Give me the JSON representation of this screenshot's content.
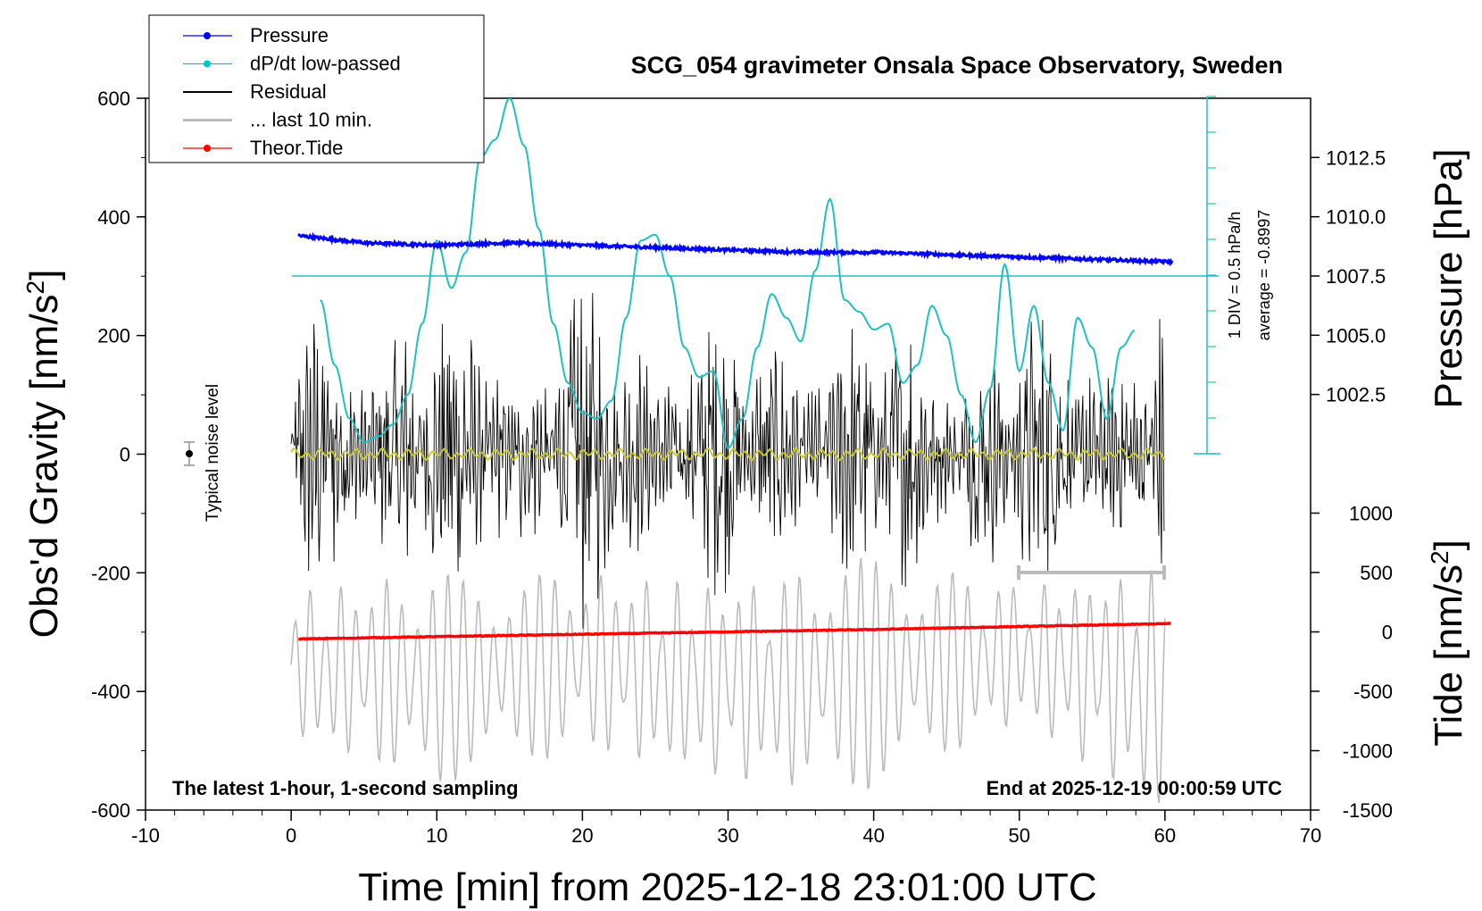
{
  "chart_data": {
    "type": "line",
    "title": "SCG_054 gravimeter Onsala Space Observatory, Sweden",
    "subtitle_left": "The latest 1-hour, 1-second sampling",
    "subtitle_right": "End at 2025-12-19 00:00:59 UTC",
    "xlabel": "Time [min] from 2025-12-18 23:01:00 UTC",
    "ylabel_left": "Obs'd Gravity [nm/s",
    "ylabel_left_sup": "2",
    "ylabel_left_end": "]",
    "ylabel_right_pressure": "Pressure [hPa]",
    "ylabel_right_tide": "Tide [nm/s",
    "ylabel_right_tide_sup": "2",
    "ylabel_right_tide_end": "]",
    "xlim": [
      -10,
      70
    ],
    "ylim_left": [
      -600,
      600
    ],
    "pressure_ylim": [
      1000.0,
      1015.0
    ],
    "tide_ylim": [
      -1500,
      1500
    ],
    "x_ticks": [
      "-10",
      "0",
      "10",
      "20",
      "30",
      "40",
      "50",
      "60",
      "70"
    ],
    "y_ticks_left": [
      "600",
      "400",
      "200",
      "0",
      "-200",
      "-400",
      "-600"
    ],
    "pressure_ticks": [
      "1012.5",
      "1010.0",
      "1007.5",
      "1005.0",
      "1002.5"
    ],
    "tide_ticks": [
      "1000",
      "500",
      "0",
      "-500",
      "-1000",
      "-1500"
    ],
    "legend_position": "top-left",
    "legend": [
      {
        "label": "Pressure",
        "color": "#0000ff",
        "marker": true
      },
      {
        "label": "dP/dt low-passed",
        "color": "#00c8c8",
        "marker": true
      },
      {
        "label": "Residual",
        "color": "#000000",
        "marker": false
      },
      {
        "label": "... last 10 min.",
        "color": "#bbbbbb",
        "marker": false
      },
      {
        "label": "Theor.Tide",
        "color": "#ff0000",
        "marker": true
      }
    ],
    "annotations": {
      "noise_label": "Typical noise level",
      "div_label": "1 DIV = 0.5 hPa/h",
      "average_label": "average = -0.8997"
    },
    "colors": {
      "pressure": "#0000ff",
      "dpdt": "#20c0c0",
      "residual": "#000000",
      "last10": "#bbbbbb",
      "tide": "#ff0000",
      "smooth_residual": "#c8c832"
    },
    "series": [
      {
        "name": "Pressure",
        "axis": "pressure_hPa",
        "x": [
          0.5,
          5,
          10,
          15,
          20,
          25,
          30,
          35,
          40,
          45,
          50,
          55,
          60.5
        ],
        "values": [
          1009.2,
          1008.9,
          1008.8,
          1008.9,
          1008.8,
          1008.7,
          1008.6,
          1008.5,
          1008.5,
          1008.4,
          1008.3,
          1008.2,
          1008.1
        ]
      },
      {
        "name": "dP/dt low-passed",
        "axis": "gravity_nm_s2",
        "x": [
          2,
          3,
          4,
          5,
          6,
          7,
          8,
          9,
          10,
          11,
          12,
          13,
          14,
          15,
          16,
          17,
          18,
          19,
          20,
          21,
          22,
          23,
          24,
          25,
          26,
          27,
          28,
          29,
          30,
          31,
          32,
          33,
          34,
          35,
          36,
          37,
          38,
          39,
          40,
          41,
          42,
          43,
          44,
          45,
          46,
          47,
          48,
          49,
          50,
          51,
          52,
          53,
          54,
          55,
          56,
          57,
          58
        ],
        "values": [
          260,
          150,
          60,
          20,
          30,
          50,
          100,
          220,
          360,
          280,
          340,
          500,
          530,
          600,
          520,
          380,
          220,
          120,
          70,
          60,
          90,
          230,
          360,
          370,
          300,
          180,
          130,
          140,
          10,
          60,
          180,
          270,
          230,
          190,
          310,
          430,
          260,
          240,
          210,
          220,
          120,
          150,
          250,
          200,
          100,
          20,
          110,
          320,
          140,
          250,
          120,
          40,
          230,
          180,
          60,
          180,
          210
        ]
      },
      {
        "name": "Residual",
        "axis": "gravity_nm_s2",
        "x": [
          0,
          10,
          20,
          30,
          40,
          50,
          60
        ],
        "envelope_min": [
          -230,
          -250,
          -200,
          -190,
          -190,
          -200,
          -260
        ],
        "envelope_max": [
          240,
          250,
          260,
          220,
          230,
          220,
          230
        ]
      },
      {
        "name": "... last 10 min.",
        "axis": "gravity_nm_s2",
        "x": [
          0,
          10,
          20,
          30,
          40,
          50,
          60
        ],
        "envelope_min": [
          -480,
          -560,
          -500,
          -550,
          -570,
          -450,
          -610
        ],
        "envelope_max": [
          -230,
          -200,
          -200,
          -220,
          -170,
          -220,
          -190
        ]
      },
      {
        "name": "Theor.Tide",
        "axis": "tide_nm_s2",
        "x": [
          0.5,
          10,
          20,
          30,
          40,
          50,
          60.5
        ],
        "values": [
          -60,
          -40,
          -20,
          0,
          20,
          45,
          70
        ]
      }
    ]
  }
}
